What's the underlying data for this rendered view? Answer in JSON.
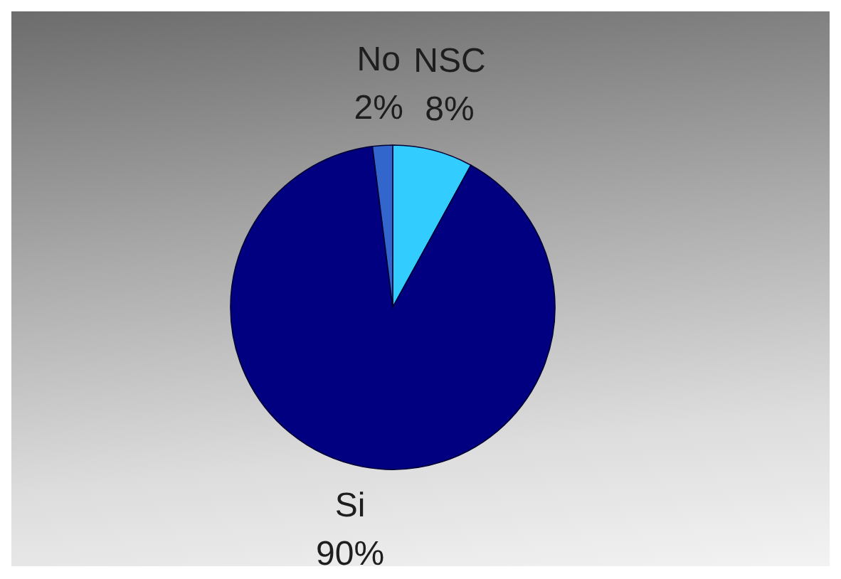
{
  "chart_data": {
    "type": "pie",
    "categories": [
      "NSC",
      "Si",
      "No"
    ],
    "values": [
      8,
      90,
      2
    ],
    "value_labels": [
      "8%",
      "90%",
      "2%"
    ],
    "colors": [
      "#33ccff",
      "#000080",
      "#3366cc"
    ]
  }
}
